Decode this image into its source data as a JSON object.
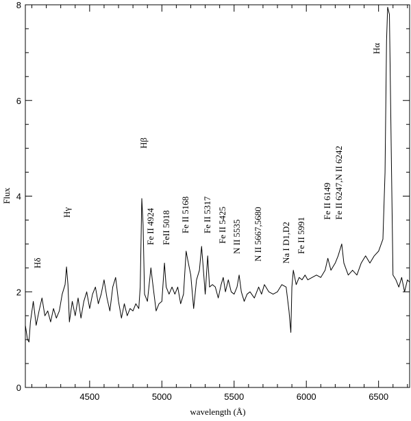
{
  "chart_data": {
    "type": "line",
    "xlabel": "wavelength (Å)",
    "ylabel": "Flux",
    "xlim": [
      4055,
      6715
    ],
    "ylim": [
      0,
      8
    ],
    "xticks": [
      4500,
      5000,
      5500,
      6000,
      6500
    ],
    "xminorticks": [
      4100,
      4200,
      4300,
      4400,
      4600,
      4700,
      4800,
      4900,
      5100,
      5200,
      5300,
      5400,
      5600,
      5700,
      5800,
      5900,
      6100,
      6200,
      6300,
      6400,
      6600,
      6700
    ],
    "yticks": [
      0,
      2,
      4,
      6,
      8
    ],
    "yminorticks": [
      0.5,
      1,
      1.5,
      2.5,
      3,
      3.5,
      4.5,
      5,
      5.5,
      6.5,
      7,
      7.5
    ],
    "color": "#000000",
    "annotations": [
      "Hδ",
      "Hγ",
      "Hβ",
      "Fe II 4924",
      "FeII 5018",
      "Fe II 5168",
      "Fe II 5317",
      "Fe II 5425",
      "N II 5535",
      "N II 5667,5680",
      "Na I D1,D2",
      "Fe II 5991",
      "Fe II 6149",
      "Fe II 6247,N II 6242",
      "Hα"
    ],
    "x": [
      4055,
      4070,
      4080,
      4090,
      4110,
      4130,
      4150,
      4170,
      4190,
      4210,
      4230,
      4250,
      4270,
      4290,
      4310,
      4330,
      4340,
      4350,
      4360,
      4380,
      4400,
      4420,
      4440,
      4460,
      4480,
      4500,
      4520,
      4540,
      4560,
      4580,
      4600,
      4620,
      4640,
      4660,
      4680,
      4700,
      4720,
      4740,
      4760,
      4780,
      4800,
      4820,
      4840,
      4850,
      4861,
      4870,
      4880,
      4900,
      4924,
      4940,
      4960,
      4980,
      5000,
      5018,
      5030,
      5050,
      5070,
      5090,
      5110,
      5130,
      5150,
      5168,
      5180,
      5200,
      5220,
      5240,
      5260,
      5275,
      5290,
      5300,
      5317,
      5330,
      5350,
      5370,
      5390,
      5410,
      5425,
      5440,
      5460,
      5480,
      5500,
      5520,
      5535,
      5550,
      5570,
      5590,
      5610,
      5640,
      5670,
      5690,
      5710,
      5740,
      5770,
      5800,
      5830,
      5860,
      5880,
      5893,
      5900,
      5910,
      5930,
      5950,
      5970,
      5991,
      6010,
      6040,
      6070,
      6100,
      6130,
      6149,
      6170,
      6200,
      6220,
      6245,
      6260,
      6290,
      6320,
      6350,
      6380,
      6410,
      6440,
      6470,
      6500,
      6530,
      6545,
      6555,
      6563,
      6575,
      6590,
      6600,
      6620,
      6640,
      6660,
      6680,
      6700,
      6715
    ],
    "values": [
      1.3,
      1.0,
      0.95,
      1.37,
      1.8,
      1.3,
      1.6,
      1.87,
      1.5,
      1.6,
      1.37,
      1.65,
      1.45,
      1.6,
      1.95,
      2.15,
      2.52,
      2.15,
      1.37,
      1.8,
      1.5,
      1.87,
      1.45,
      1.8,
      2.0,
      1.65,
      1.95,
      2.1,
      1.75,
      1.95,
      2.25,
      1.87,
      1.6,
      2.1,
      2.3,
      1.8,
      1.45,
      1.75,
      1.5,
      1.65,
      1.6,
      1.75,
      1.65,
      2.1,
      3.95,
      3.4,
      1.95,
      1.8,
      2.5,
      2.1,
      1.6,
      1.75,
      1.8,
      2.6,
      2.1,
      1.95,
      2.1,
      1.95,
      2.1,
      1.75,
      1.95,
      2.85,
      2.65,
      2.35,
      1.65,
      2.25,
      2.45,
      2.95,
      2.35,
      1.95,
      2.75,
      2.1,
      2.15,
      2.1,
      1.87,
      2.15,
      2.3,
      2.0,
      2.25,
      2.0,
      1.95,
      2.1,
      2.35,
      2.0,
      1.8,
      1.95,
      2.0,
      1.87,
      2.1,
      1.95,
      2.15,
      2.0,
      1.95,
      2.0,
      2.15,
      2.1,
      1.6,
      1.15,
      2.1,
      2.45,
      2.15,
      2.3,
      2.25,
      2.35,
      2.25,
      2.3,
      2.35,
      2.3,
      2.45,
      2.7,
      2.45,
      2.6,
      2.75,
      3.0,
      2.6,
      2.35,
      2.45,
      2.35,
      2.6,
      2.75,
      2.6,
      2.75,
      2.85,
      3.1,
      4.5,
      7.25,
      7.95,
      7.8,
      4.5,
      2.35,
      2.25,
      2.1,
      2.3,
      2.0,
      2.25,
      2.2
    ]
  }
}
